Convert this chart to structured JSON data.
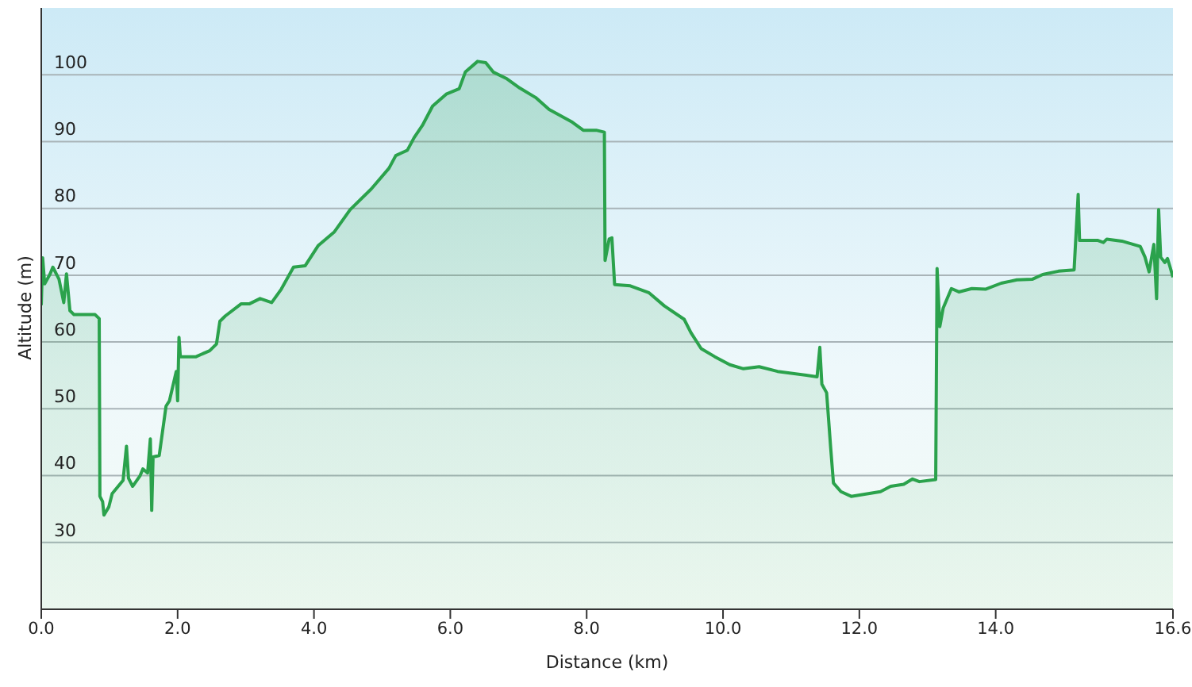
{
  "chart_data": {
    "type": "area",
    "xlabel": "Distance  (km)",
    "ylabel": "Altitude (m)",
    "xlim": [
      0,
      16.6
    ],
    "ylim": [
      20,
      110
    ],
    "xticks": [
      {
        "value": 0,
        "label": "0.0"
      },
      {
        "value": 2,
        "label": "2.0"
      },
      {
        "value": 4,
        "label": "4.0"
      },
      {
        "value": 6,
        "label": "6.0"
      },
      {
        "value": 8,
        "label": "8.0"
      },
      {
        "value": 10,
        "label": "10.0"
      },
      {
        "value": 12,
        "label": "12.0"
      },
      {
        "value": 14,
        "label": "14.0"
      },
      {
        "value": 16.6,
        "label": "16.6"
      }
    ],
    "yticks": [
      30,
      40,
      50,
      60,
      70,
      80,
      90,
      100
    ],
    "grid": "y",
    "series": [
      {
        "color": "#2ba24c",
        "x": [
          0,
          0.02,
          0.05,
          0.13,
          0.17,
          0.26,
          0.33,
          0.37,
          0.42,
          0.48,
          0.79,
          0.85,
          0.86,
          0.9,
          0.92,
          0.99,
          1.04,
          1.2,
          1.25,
          1.28,
          1.34,
          1.45,
          1.49,
          1.56,
          1.6,
          1.62,
          1.64,
          1.73,
          1.83,
          1.88,
          1.98,
          2.0,
          2.02,
          2.04,
          2.27,
          2.47,
          2.57,
          2.62,
          2.7,
          2.93,
          3.05,
          3.21,
          3.38,
          3.52,
          3.7,
          3.87,
          4.06,
          4.3,
          4.53,
          4.84,
          5.1,
          5.2,
          5.37,
          5.47,
          5.59,
          5.74,
          5.94,
          6.13,
          6.22,
          6.4,
          6.52,
          6.63,
          6.83,
          7.02,
          7.25,
          7.45,
          7.79,
          7.95,
          8.14,
          8.26,
          8.27,
          8.33,
          8.37,
          8.41,
          8.64,
          8.91,
          9.14,
          9.43,
          9.53,
          9.68,
          9.88,
          10.1,
          10.3,
          10.53,
          10.8,
          11.38,
          11.42,
          11.45,
          11.52,
          11.58,
          11.62,
          11.73,
          11.88,
          12.31,
          12.46,
          12.65,
          12.78,
          12.88,
          13.12,
          13.14,
          13.18,
          13.23,
          13.35,
          13.46,
          13.65,
          13.85,
          14.08,
          14.31,
          14.54,
          14.69,
          14.92,
          15.15,
          15.21,
          15.23,
          15.5,
          15.58,
          15.63,
          15.85,
          16.12,
          16.19,
          16.25,
          16.32,
          16.36,
          16.39,
          16.42,
          16.48,
          16.52,
          16.55,
          16.6
        ],
        "values": [
          65.5,
          72.6,
          68.7,
          70.2,
          71.2,
          69.4,
          65.9,
          70.2,
          64.7,
          64.1,
          64.1,
          63.5,
          36.9,
          36.1,
          34.1,
          35.3,
          37.3,
          39.3,
          44.4,
          39.6,
          38.4,
          40,
          41,
          40.4,
          45.5,
          34.8,
          42.8,
          43,
          50.4,
          51.2,
          55.6,
          51.2,
          60.7,
          57.8,
          57.8,
          58.7,
          59.7,
          63.1,
          63.9,
          65.7,
          65.7,
          66.5,
          65.9,
          67.9,
          71.2,
          71.4,
          74.4,
          76.5,
          79.8,
          82.9,
          86,
          87.9,
          88.7,
          90.6,
          92.4,
          95.3,
          97.1,
          97.9,
          100.4,
          102,
          101.8,
          100.4,
          99.4,
          98,
          96.6,
          94.8,
          92.9,
          91.7,
          91.7,
          91.4,
          72.2,
          75.4,
          75.6,
          68.6,
          68.4,
          67.4,
          65.4,
          63.4,
          61.4,
          59,
          57.8,
          56.6,
          56,
          56.3,
          55.6,
          54.8,
          59.2,
          53.7,
          52.4,
          44.1,
          38.9,
          37.6,
          36.9,
          37.6,
          38.4,
          38.7,
          39.5,
          39.1,
          39.4,
          71,
          62.3,
          65.1,
          68,
          67.5,
          68,
          67.9,
          68.8,
          69.3,
          69.4,
          70.1,
          70.6,
          70.8,
          82.1,
          75.2,
          75.2,
          74.9,
          75.4,
          75.1,
          74.3,
          72.7,
          70.5,
          74.6,
          66.5,
          79.8,
          72.7,
          71.9,
          72.5,
          71.5,
          69.7
        ]
      }
    ]
  }
}
